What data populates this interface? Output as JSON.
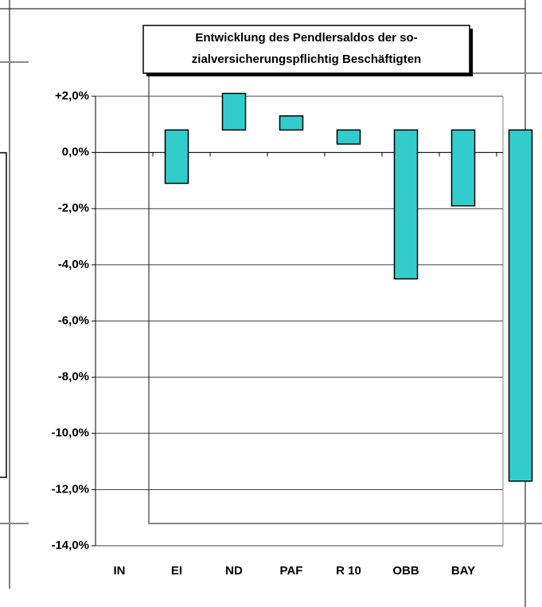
{
  "chart_data": {
    "type": "floating-bar",
    "title": [
      "Entwicklung des Pendlersaldos der so-",
      "zialversicherungspflichtig Beschäftigten"
    ],
    "categories": [
      "IN",
      "EI",
      "ND",
      "PAF",
      "R 10",
      "OBB",
      "BAY",
      null
    ],
    "low": [
      null,
      -1.1,
      0.8,
      0.8,
      0.3,
      -4.5,
      -1.9,
      -11.7
    ],
    "high": [
      null,
      0.8,
      2.1,
      1.3,
      0.8,
      0.8,
      0.8,
      0.8
    ],
    "color": "#33cccc",
    "ylim": [
      -14,
      2
    ],
    "yticks": [
      {
        "value": -14,
        "label": "-14,0%"
      },
      {
        "value": -12,
        "label": "-12,0%"
      },
      {
        "value": -10,
        "label": "-10,0%"
      },
      {
        "value": -8,
        "label": "-8,0%"
      },
      {
        "value": -6,
        "label": "-6,0%"
      },
      {
        "value": -4,
        "label": "-4,0%"
      },
      {
        "value": -2,
        "label": "-2,0%"
      },
      {
        "value": 0,
        "label": "0,0%"
      },
      {
        "value": 2,
        "label": "+2,0%"
      }
    ],
    "grid": true
  }
}
